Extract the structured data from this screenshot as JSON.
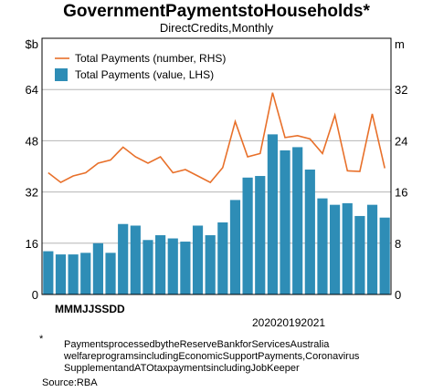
{
  "chart_data": {
    "type": "bar",
    "title": "GovernmentPaymentstoHouseholds*",
    "subtitle": "DirectCredits,Monthly",
    "left_unit": "$b",
    "right_unit": "m",
    "ylim_left": [
      0,
      80
    ],
    "ylim_right": [
      0,
      40
    ],
    "left_ticks": [
      "0",
      "16",
      "32",
      "48",
      "64"
    ],
    "right_ticks": [
      "0",
      "8",
      "16",
      "24",
      "32"
    ],
    "x_month_labels": "MMMJJSSDD",
    "x_year_labels": "202020192021",
    "grid": true,
    "legend": "top-left",
    "series": [
      {
        "name": "Total Payments (number, RHS)",
        "type": "line",
        "axis": "right",
        "color": "#e8702a",
        "values": [
          19,
          17.5,
          18.5,
          19,
          20.5,
          21,
          23,
          21.5,
          20.5,
          21.5,
          19,
          19.5,
          18.5,
          17.5,
          19.8,
          27,
          21.5,
          22,
          31.5,
          24.5,
          24.8,
          24.3,
          22,
          28,
          19.3,
          19.2,
          28.2,
          19.7
        ]
      },
      {
        "name": "Total Payments (value, LHS)",
        "type": "bar",
        "axis": "left",
        "color": "#2e8db6",
        "values": [
          13.5,
          12.5,
          12.5,
          13,
          16,
          13,
          22,
          21.5,
          17,
          18.5,
          17.5,
          16.5,
          21.5,
          18.5,
          22.5,
          29.5,
          36.5,
          37,
          50,
          45,
          46,
          39,
          30,
          28,
          28.5,
          24.5,
          28,
          24
        ]
      }
    ]
  },
  "footnote_mark": "*",
  "footnote": "PaymentsprocessedbytheReserveBankforServicesAustralia welfareprogramsincludingEconomicSupportPayments,Coronavirus SupplementandATOtaxpaymentsincludingJobKeeper",
  "source": "Source:RBA"
}
